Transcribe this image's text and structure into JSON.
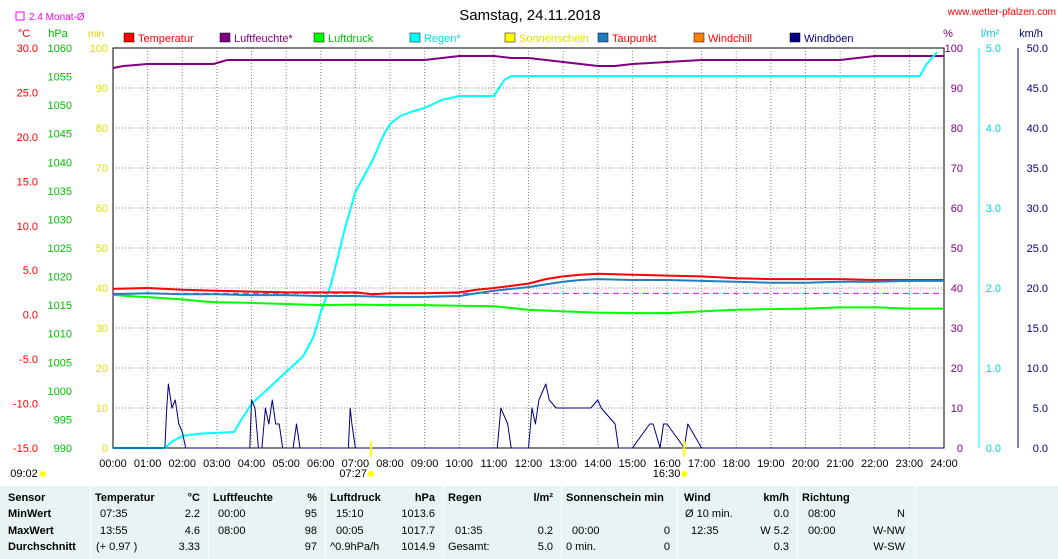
{
  "chart_data": {
    "type": "line",
    "title": "Samstag, 24.11.2018",
    "website": "www.wetter-pfalzen.com",
    "monthly_avg_label": "2.4 Monat-Ø",
    "x_ticks": [
      "00:00",
      "01:00",
      "02:00",
      "03:00",
      "04:00",
      "05:00",
      "06:00",
      "07:00",
      "08:00",
      "09:00",
      "10:00",
      "11:00",
      "12:00",
      "13:00",
      "14:00",
      "15:00",
      "16:00",
      "17:00",
      "18:00",
      "19:00",
      "20:00",
      "21:00",
      "22:00",
      "23:00",
      "24:00"
    ],
    "time_markers": {
      "left": "09:02",
      "sunrise": "07:27",
      "sunset": "16:30"
    },
    "axes": {
      "temperature": {
        "unit": "°C",
        "min": -15,
        "max": 30,
        "ticks": [
          "30.0",
          "25.0",
          "20.0",
          "15.0",
          "10.0",
          "5.0",
          "0.0",
          "-5.0",
          "-10.0",
          "-15.0"
        ],
        "color": "#ff0000"
      },
      "pressure": {
        "unit": "hPa",
        "min": 990,
        "max": 1060,
        "ticks": [
          "1060",
          "1055",
          "1050",
          "1045",
          "1040",
          "1035",
          "1030",
          "1025",
          "1020",
          "1015",
          "1010",
          "1005",
          "1000",
          "995",
          "990"
        ],
        "color": "#00c000"
      },
      "sunshine": {
        "unit": "min",
        "min": 0,
        "max": 100,
        "ticks": [
          "100",
          "90",
          "80",
          "70",
          "60",
          "50",
          "40",
          "30",
          "20",
          "10",
          "0"
        ],
        "color": "#ffff00"
      },
      "humidity": {
        "unit": "%",
        "min": 0,
        "max": 100,
        "ticks": [
          "100",
          "90",
          "80",
          "70",
          "60",
          "50",
          "40",
          "30",
          "20",
          "10",
          "0"
        ],
        "color": "#800080"
      },
      "rain": {
        "unit": "l/m²",
        "min": 0,
        "max": 5,
        "ticks": [
          "5.0",
          "4.0",
          "3.0",
          "2.0",
          "1.0",
          "0.0"
        ],
        "color": "#00ffff"
      },
      "wind": {
        "unit": "km/h",
        "min": 0,
        "max": 50,
        "ticks": [
          "50.0",
          "45.0",
          "40.0",
          "35.0",
          "30.0",
          "25.0",
          "20.0",
          "15.0",
          "10.0",
          "5.0",
          "0.0"
        ],
        "color": "#000080"
      }
    },
    "legend": [
      {
        "name": "Temperatur",
        "color": "#ff0000",
        "label_color": "#ff0000"
      },
      {
        "name": "Luftfeuchte*",
        "color": "#800080",
        "label_color": "#800080"
      },
      {
        "name": "Luftdruck",
        "color": "#00ff00",
        "label_color": "#00c000"
      },
      {
        "name": "Regen*",
        "color": "#00ffff",
        "label_color": "#00e0e0"
      },
      {
        "name": "Sonnenschein",
        "color": "#ffff00",
        "label_color": "#e0e000"
      },
      {
        "name": "Taupunkt",
        "color": "#1f7fc0",
        "label_color": "#ff0000"
      },
      {
        "name": "Windchill",
        "color": "#ff8000",
        "label_color": "#ff0000"
      },
      {
        "name": "Windböen",
        "color": "#000080",
        "label_color": "#000080"
      }
    ],
    "series": [
      {
        "name": "Luftfeuchte*",
        "axis": "humidity",
        "color": "#800080",
        "x": [
          0,
          0.3,
          1,
          2,
          2.9,
          3.3,
          5,
          8,
          9,
          9.5,
          10,
          11,
          11.5,
          12,
          13,
          13.5,
          14,
          14.5,
          15,
          16,
          17,
          18,
          19,
          20,
          21,
          21.5,
          22,
          23,
          24
        ],
        "y": [
          95,
          95.5,
          96,
          96,
          96,
          97,
          97,
          97,
          97,
          97.5,
          98,
          98,
          97.5,
          97.5,
          96.5,
          96,
          95.5,
          95.5,
          96,
          96.5,
          97,
          97,
          97,
          97,
          97,
          97.5,
          98,
          98,
          98
        ]
      },
      {
        "name": "Regen*",
        "axis": "rain",
        "color": "#00ffff",
        "x": [
          0,
          1.5,
          1.7,
          2,
          2.5,
          3.5,
          3.7,
          4,
          4.5,
          5,
          5.5,
          5.8,
          6,
          6.3,
          6.5,
          6.7,
          7,
          7.5,
          7.8,
          8,
          8.3,
          8.6,
          9,
          9.5,
          10,
          10.5,
          11,
          11.3,
          11.5,
          12,
          13,
          14,
          15,
          16,
          17,
          18,
          19,
          20,
          21,
          22,
          23,
          23.3,
          23.5,
          23.7,
          23.8
        ],
        "y": [
          0,
          0,
          0.08,
          0.15,
          0.18,
          0.2,
          0.35,
          0.55,
          0.75,
          0.95,
          1.15,
          1.4,
          1.7,
          2.05,
          2.4,
          2.75,
          3.2,
          3.6,
          3.9,
          4.05,
          4.15,
          4.2,
          4.25,
          4.35,
          4.4,
          4.4,
          4.4,
          4.6,
          4.65,
          4.65,
          4.65,
          4.65,
          4.65,
          4.65,
          4.65,
          4.65,
          4.65,
          4.65,
          4.65,
          4.65,
          4.65,
          4.65,
          4.8,
          4.9,
          4.95
        ]
      },
      {
        "name": "Luftdruck",
        "axis": "pressure",
        "color": "#00ff00",
        "x": [
          0,
          0.7,
          1,
          2,
          2.5,
          3,
          4,
          5,
          6,
          7,
          8,
          9,
          10,
          11,
          12,
          13,
          14,
          15,
          16,
          17,
          18,
          19,
          20,
          21,
          22,
          23,
          24
        ],
        "y": [
          1016.8,
          1016.5,
          1016.4,
          1016.0,
          1015.7,
          1015.5,
          1015.4,
          1015.2,
          1015.0,
          1015.1,
          1015.0,
          1015.0,
          1014.9,
          1014.8,
          1014.2,
          1013.9,
          1013.7,
          1013.6,
          1013.6,
          1013.9,
          1014.2,
          1014.3,
          1014.4,
          1014.6,
          1014.6,
          1014.4,
          1014.4
        ]
      },
      {
        "name": "Temperatur",
        "axis": "temperature",
        "color": "#ff0000",
        "x": [
          0,
          1,
          2,
          3,
          4,
          5,
          6,
          7,
          7.5,
          8,
          9,
          10,
          10.5,
          11,
          12,
          12.5,
          13,
          13.5,
          14,
          15,
          16,
          17,
          18,
          19,
          20,
          21,
          22,
          23,
          24
        ],
        "y": [
          2.9,
          3.0,
          2.8,
          2.7,
          2.6,
          2.5,
          2.5,
          2.5,
          2.3,
          2.4,
          2.4,
          2.5,
          2.8,
          3.0,
          3.5,
          4.0,
          4.3,
          4.5,
          4.6,
          4.5,
          4.4,
          4.3,
          4.1,
          4.0,
          4.0,
          4.0,
          3.9,
          3.9,
          3.9
        ]
      },
      {
        "name": "Taupunkt",
        "axis": "temperature",
        "color": "#1f7fc0",
        "x": [
          0,
          1,
          2,
          3,
          4,
          5,
          6,
          7,
          8,
          9,
          10,
          10.5,
          11,
          12,
          12.5,
          13,
          13.5,
          14,
          15,
          16,
          17,
          18,
          19,
          20,
          21,
          22,
          23,
          24
        ],
        "y": [
          2.3,
          2.4,
          2.3,
          2.3,
          2.2,
          2.2,
          2.1,
          2.1,
          2.0,
          2.0,
          2.1,
          2.4,
          2.7,
          3.1,
          3.4,
          3.7,
          3.9,
          4.0,
          3.9,
          3.9,
          3.8,
          3.7,
          3.6,
          3.6,
          3.7,
          3.7,
          3.8,
          3.8
        ]
      },
      {
        "name": "Windböen",
        "axis": "wind",
        "color": "#000080",
        "x": [
          0,
          1.5,
          1.55,
          1.6,
          1.7,
          1.8,
          1.9,
          2.0,
          2.1,
          2.2,
          3.9,
          3.95,
          4.0,
          4.1,
          4.2,
          4.3,
          4.4,
          4.5,
          4.6,
          4.7,
          4.8,
          4.9,
          5.0,
          5.2,
          5.3,
          5.4,
          6.7,
          6.8,
          6.85,
          6.9,
          7.0,
          11.0,
          11.1,
          11.2,
          11.4,
          11.5,
          12.0,
          12.1,
          12.2,
          12.3,
          12.5,
          12.6,
          12.8,
          13.0,
          13.2,
          13.5,
          13.8,
          14.0,
          14.1,
          14.5,
          14.6,
          14.9,
          15.0,
          15.5,
          15.6,
          15.8,
          15.9,
          16.0,
          16.5,
          16.6,
          17.0,
          24.0
        ],
        "y": [
          0,
          0,
          5,
          8,
          5,
          6,
          3,
          2,
          0,
          0,
          0,
          0,
          6,
          5,
          0,
          0,
          5,
          3,
          6,
          3,
          3,
          0,
          0,
          0,
          3,
          0,
          0,
          0,
          5,
          3,
          0,
          0,
          0,
          5,
          3,
          0,
          0,
          5,
          3,
          6,
          8,
          6,
          5,
          5,
          5,
          5,
          5,
          6,
          5,
          3,
          0,
          0,
          0,
          3,
          3,
          0,
          3,
          3,
          0,
          3,
          0,
          0
        ]
      }
    ],
    "reference_lines": [
      {
        "label": "Monat-Ø",
        "axis": "temperature",
        "value": 2.4,
        "color": "#ff00ff",
        "style": "dashed"
      }
    ]
  },
  "table": {
    "header": {
      "sensor": "Sensor",
      "temp": "Temperatur",
      "temp_unit": "°C",
      "hum": "Luftfeuchte",
      "hum_unit": "%",
      "press": "Luftdruck",
      "press_unit": "hPa",
      "rain": "Regen",
      "rain_unit": "l/m²",
      "sun": "Sonnenschein min",
      "wind": "Wind",
      "wind_unit": "km/h",
      "dir": "Richtung"
    },
    "min": {
      "label": "MinWert",
      "temp_time": "07:35",
      "temp_val": "2.2",
      "hum_time": "00:00",
      "hum_val": "95",
      "press_time": "15:10",
      "press_val": "1013.6",
      "rain_time": "",
      "rain_val": "",
      "sun_time": "",
      "sun_val": "",
      "wind_label": "Ø 10 min.",
      "wind_val": "0.0",
      "dir_time": "08:00",
      "dir_val": "N"
    },
    "max": {
      "label": "MaxWert",
      "temp_time": "13:55",
      "temp_val": "4.6",
      "hum_time": "08:00",
      "hum_val": "98",
      "press_time": "00:05",
      "press_val": "1017.7",
      "rain_time": "01:35",
      "rain_val": "0.2",
      "sun_time": "00:00",
      "sun_val": "0",
      "wind_label": "12:35",
      "wind_val": "W 5.2",
      "dir_time": "00:00",
      "dir_val": "W-NW"
    },
    "avg": {
      "label": "Durchschnitt",
      "temp_time": "(+ 0.97 )",
      "temp_val": "3.33",
      "hum_time": "",
      "hum_val": "97",
      "press_time": "^0.9hPa/h",
      "press_val": "1014.9",
      "rain_time": "Gesamt:",
      "rain_val": "5.0",
      "sun_time": "0 min.",
      "sun_val": "0",
      "wind_label": "",
      "wind_val": "0.3",
      "dir_time": "",
      "dir_val": "W-SW"
    }
  }
}
